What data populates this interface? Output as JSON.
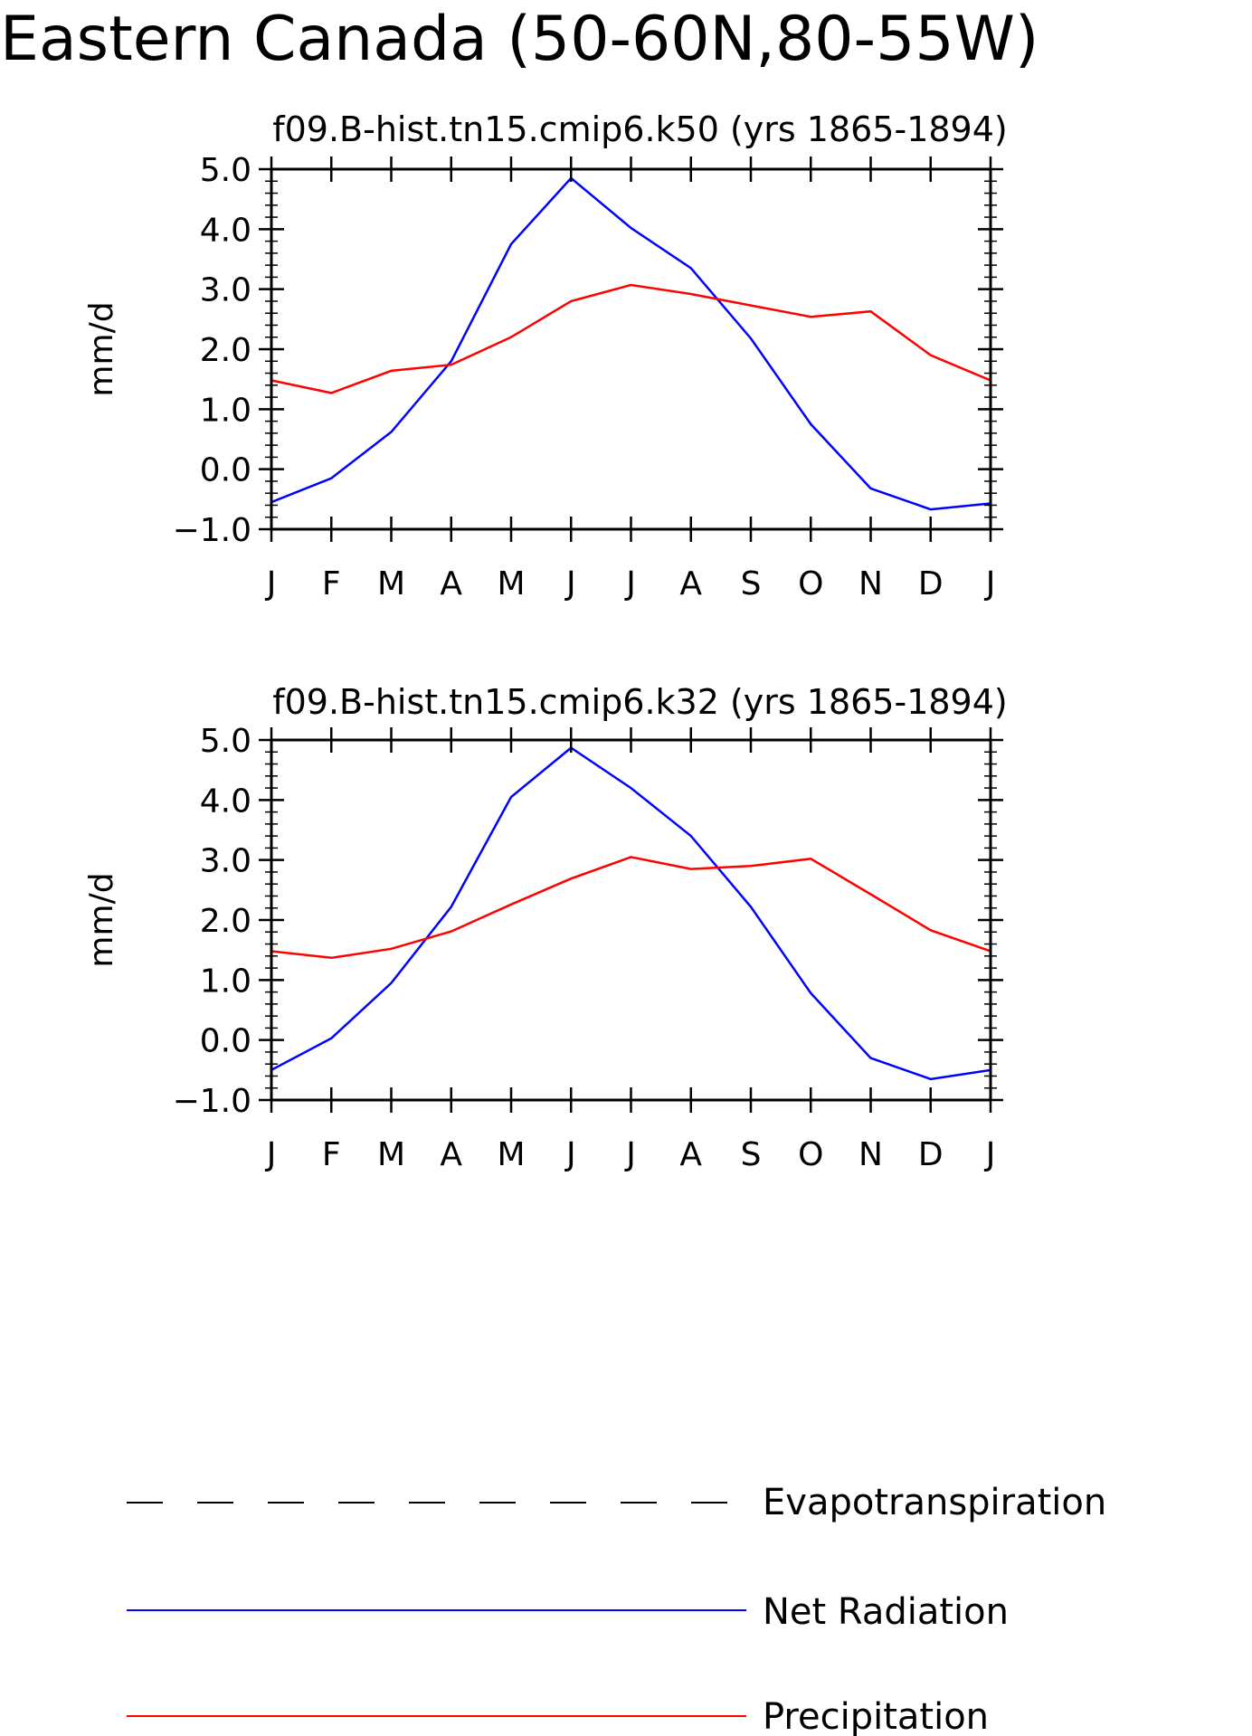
{
  "figure": {
    "title": "Eastern Canada (50-60N,80-55W)"
  },
  "colors": {
    "net_radiation": "#0000ff",
    "precipitation": "#ff0000",
    "evapotranspiration": "#000000",
    "axes": "#000000"
  },
  "legend": {
    "placement": "bottom",
    "entries": [
      {
        "label": "Evapotranspiration",
        "style": "dashed",
        "color": "#000000"
      },
      {
        "label": "Net Radiation",
        "style": "solid",
        "color": "#0000ff"
      },
      {
        "label": "Precipitation",
        "style": "solid",
        "color": "#ff0000"
      }
    ]
  },
  "chart_data": [
    {
      "type": "line",
      "title": "f09.B-hist.tn15.cmip6.k50 (yrs 1865-1894)",
      "ylabel": "mm/d",
      "xlabel": "",
      "ylim": [
        -1.0,
        5.0
      ],
      "yticks": [
        "5.0",
        "4.0",
        "3.0",
        "2.0",
        "1.0",
        "0.0",
        "−1.0"
      ],
      "ytick_values": [
        5,
        4,
        3,
        2,
        1,
        0,
        -1
      ],
      "categories": [
        "J",
        "F",
        "M",
        "A",
        "M",
        "J",
        "J",
        "A",
        "S",
        "O",
        "N",
        "D",
        "J"
      ],
      "grid": false,
      "series": [
        {
          "name": "Net Radiation",
          "color": "#0000ff",
          "values": [
            -0.55,
            -0.15,
            0.62,
            1.8,
            3.75,
            4.85,
            4.02,
            3.35,
            2.18,
            0.75,
            -0.32,
            -0.67,
            -0.57
          ]
        },
        {
          "name": "Precipitation",
          "color": "#ff0000",
          "values": [
            1.48,
            1.27,
            1.64,
            1.74,
            2.2,
            2.8,
            3.07,
            2.92,
            2.73,
            2.54,
            2.63,
            1.9,
            1.48
          ]
        }
      ]
    },
    {
      "type": "line",
      "title": "f09.B-hist.tn15.cmip6.k32 (yrs 1865-1894)",
      "ylabel": "mm/d",
      "xlabel": "",
      "ylim": [
        -1.0,
        5.0
      ],
      "yticks": [
        "5.0",
        "4.0",
        "3.0",
        "2.0",
        "1.0",
        "0.0",
        "−1.0"
      ],
      "ytick_values": [
        5,
        4,
        3,
        2,
        1,
        0,
        -1
      ],
      "categories": [
        "J",
        "F",
        "M",
        "A",
        "M",
        "J",
        "J",
        "A",
        "S",
        "O",
        "N",
        "D",
        "J"
      ],
      "grid": false,
      "series": [
        {
          "name": "Net Radiation",
          "color": "#0000ff",
          "values": [
            -0.5,
            0.03,
            0.95,
            2.22,
            4.05,
            4.87,
            4.2,
            3.4,
            2.22,
            0.78,
            -0.3,
            -0.65,
            -0.5
          ]
        },
        {
          "name": "Precipitation",
          "color": "#ff0000",
          "values": [
            1.48,
            1.37,
            1.52,
            1.81,
            2.26,
            2.69,
            3.05,
            2.85,
            2.9,
            3.02,
            2.43,
            1.83,
            1.48
          ]
        }
      ]
    }
  ]
}
